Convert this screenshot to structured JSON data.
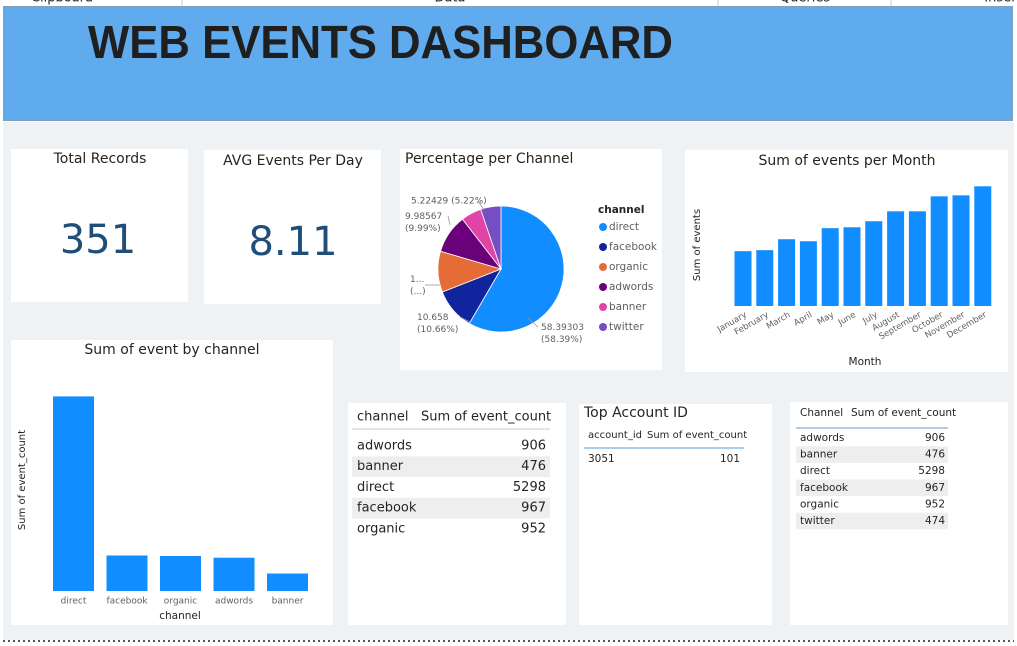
{
  "ribbon": [
    "Clipboard",
    "Data",
    "Queries",
    "Insert"
  ],
  "header": {
    "title": "WEB EVENTS DASHBOARD"
  },
  "cards": [
    {
      "label": "Total Records",
      "value": 351
    },
    {
      "label": "AVG Events Per Day",
      "value": 8.11
    }
  ],
  "chart_data": [
    {
      "type": "pie",
      "title": "Percentage per Channel",
      "legend_title": "channel",
      "legend": "right",
      "categories": [
        "direct",
        "facebook",
        "organic",
        "adwords",
        "banner",
        "twitter"
      ],
      "values": [
        58.39303,
        10.658,
        10.49257,
        9.98567,
        5.24633,
        5.22429
      ],
      "value_labels": [
        "58.39303 (58.39%)",
        "10.658 (10.66%)",
        "1... (...)",
        "9.98567 (9.99%)",
        null,
        "5.22429 (5.22%)"
      ],
      "colors": [
        "#118DFF",
        "#12239E",
        "#E66C37",
        "#6B007B",
        "#E044A7",
        "#744EC2"
      ]
    },
    {
      "type": "bar",
      "title": "Sum of events per Month",
      "x_label": "Month",
      "y_label": "Sum of events",
      "categories": [
        "January",
        "February",
        "March",
        "April",
        "May",
        "June",
        "July",
        "August",
        "September",
        "October",
        "November",
        "December"
      ],
      "values": [
        491,
        500,
        598,
        580,
        697,
        705,
        759,
        848,
        848,
        982,
        991,
        1072
      ],
      "ylim": [
        0,
        1200
      ],
      "color": "#118DFF"
    },
    {
      "type": "bar",
      "title": "Sum of event by channel",
      "x_label": "channel",
      "y_label": "Sum of event_count",
      "categories": [
        "direct",
        "facebook",
        "organic",
        "adwords",
        "banner"
      ],
      "values": [
        5298,
        967,
        952,
        906,
        476
      ],
      "ylim": [
        0,
        5500
      ],
      "color": "#118DFF"
    }
  ],
  "tables": [
    {
      "columns": [
        "channel",
        "Sum of event_count"
      ],
      "rows": [
        [
          "adwords",
          906
        ],
        [
          "banner",
          476
        ],
        [
          "direct",
          5298
        ],
        [
          "facebook",
          967
        ],
        [
          "organic",
          952
        ]
      ]
    },
    {
      "title": "Top Account ID",
      "columns": [
        "account_id",
        "Sum of event_count"
      ],
      "rows": [
        [
          3051,
          101
        ]
      ]
    },
    {
      "columns": [
        "Channel",
        "Sum of event_count"
      ],
      "rows": [
        [
          "adwords",
          906
        ],
        [
          "banner",
          476
        ],
        [
          "direct",
          5298
        ],
        [
          "facebook",
          967
        ],
        [
          "organic",
          952
        ],
        [
          "twitter",
          474
        ]
      ]
    }
  ]
}
